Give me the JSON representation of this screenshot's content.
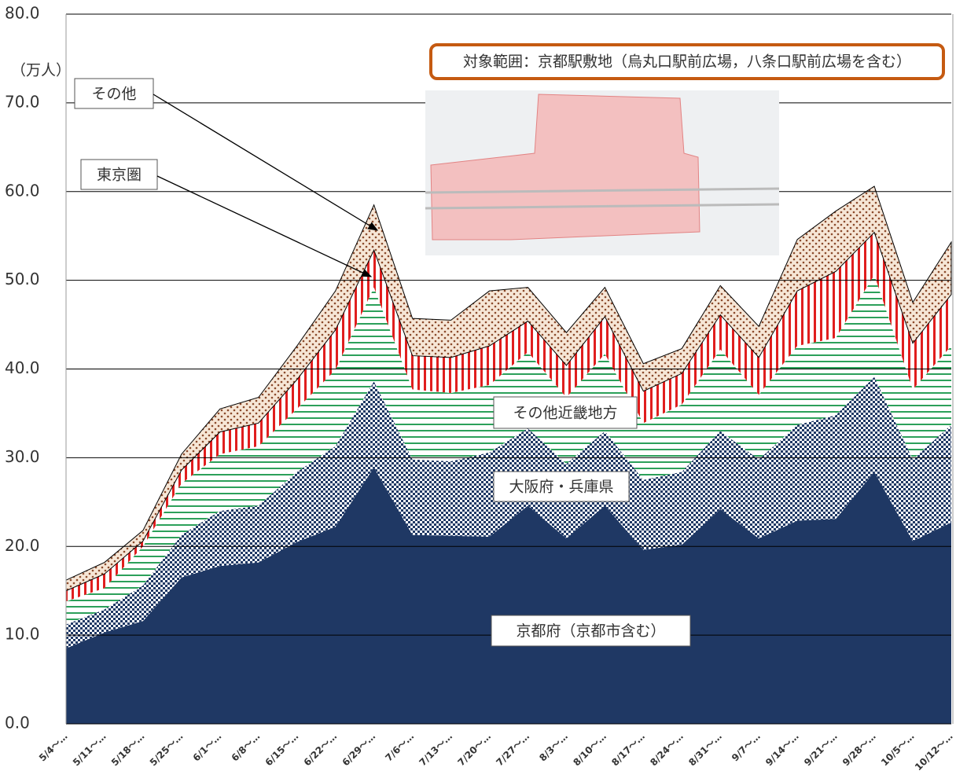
{
  "chart_data": {
    "type": "stacked_area",
    "y_unit_label": "（万人）",
    "annotation": "対象範囲：京都駅敷地（烏丸口駅前広場，八条口駅前広場を含む）",
    "categories": [
      "5/4〜…",
      "5/11〜…",
      "5/18〜…",
      "5/25〜…",
      "6/1〜…",
      "6/8〜…",
      "6/15〜…",
      "6/22〜…",
      "6/29〜…",
      "7/6〜…",
      "7/13〜…",
      "7/20〜…",
      "7/27〜…",
      "8/3〜…",
      "8/10〜…",
      "8/17〜…",
      "8/24〜…",
      "8/31〜…",
      "9/7〜…",
      "9/14〜…",
      "9/21〜…",
      "9/28〜…",
      "10/5〜…",
      "10/12〜…"
    ],
    "series": [
      {
        "name": "京都府（京都市含む）",
        "color": "#1f3864",
        "values": [
          8.5,
          10.3,
          11.6,
          16.5,
          17.8,
          18.2,
          20.5,
          22.2,
          28.9,
          21.3,
          21.2,
          21.1,
          24.6,
          20.9,
          24.6,
          19.6,
          20.2,
          24.2,
          20.9,
          22.9,
          23.1,
          28.4,
          20.6,
          22.7
        ]
      },
      {
        "name": "大阪府・兵庫県",
        "color": "#1f3864",
        "values": [
          2.7,
          2.6,
          4.0,
          4.8,
          6.2,
          6.4,
          7.9,
          9.1,
          9.7,
          8.5,
          8.4,
          9.5,
          8.7,
          8.4,
          8.4,
          7.9,
          8.2,
          8.8,
          8.9,
          10.8,
          11.7,
          10.7,
          9.2,
          11.0
        ]
      },
      {
        "name": "その他近畿地方",
        "color": "#2ca05a",
        "values": [
          2.6,
          2.4,
          4.4,
          5.8,
          6.4,
          6.7,
          7.1,
          8.6,
          10.6,
          7.9,
          7.7,
          7.6,
          8.6,
          7.5,
          8.7,
          6.4,
          7.6,
          9.2,
          7.3,
          8.9,
          8.7,
          11.5,
          7.9,
          8.9
        ]
      },
      {
        "name": "東京圏",
        "color": "#e01e1e",
        "values": [
          1.2,
          1.6,
          0.6,
          1.5,
          2.5,
          2.6,
          3.3,
          4.5,
          4.2,
          3.8,
          4.0,
          4.4,
          3.5,
          3.6,
          4.2,
          3.6,
          3.5,
          3.9,
          4.2,
          6.2,
          7.5,
          4.8,
          5.2,
          5.8
        ]
      },
      {
        "name": "その他",
        "color": "#8b4a2b",
        "values": [
          1.2,
          1.3,
          1.2,
          1.8,
          2.6,
          2.9,
          3.8,
          4.4,
          5.1,
          4.2,
          4.2,
          6.2,
          3.8,
          3.7,
          3.3,
          3.1,
          2.8,
          3.3,
          3.5,
          5.8,
          6.8,
          5.2,
          4.6,
          5.9
        ]
      }
    ],
    "ylim": [
      0,
      80
    ],
    "yticks": [
      {
        "value": 0,
        "label": "0.0"
      },
      {
        "value": 10,
        "label": "10.0"
      },
      {
        "value": 20,
        "label": "20.0"
      },
      {
        "value": 30,
        "label": "30.0"
      },
      {
        "value": 40,
        "label": "40.0"
      },
      {
        "value": 50,
        "label": "50.0"
      },
      {
        "value": 60,
        "label": "60.0"
      },
      {
        "value": 70,
        "label": "70.0"
      },
      {
        "value": 80,
        "label": "80.0"
      }
    ],
    "grid": true
  }
}
